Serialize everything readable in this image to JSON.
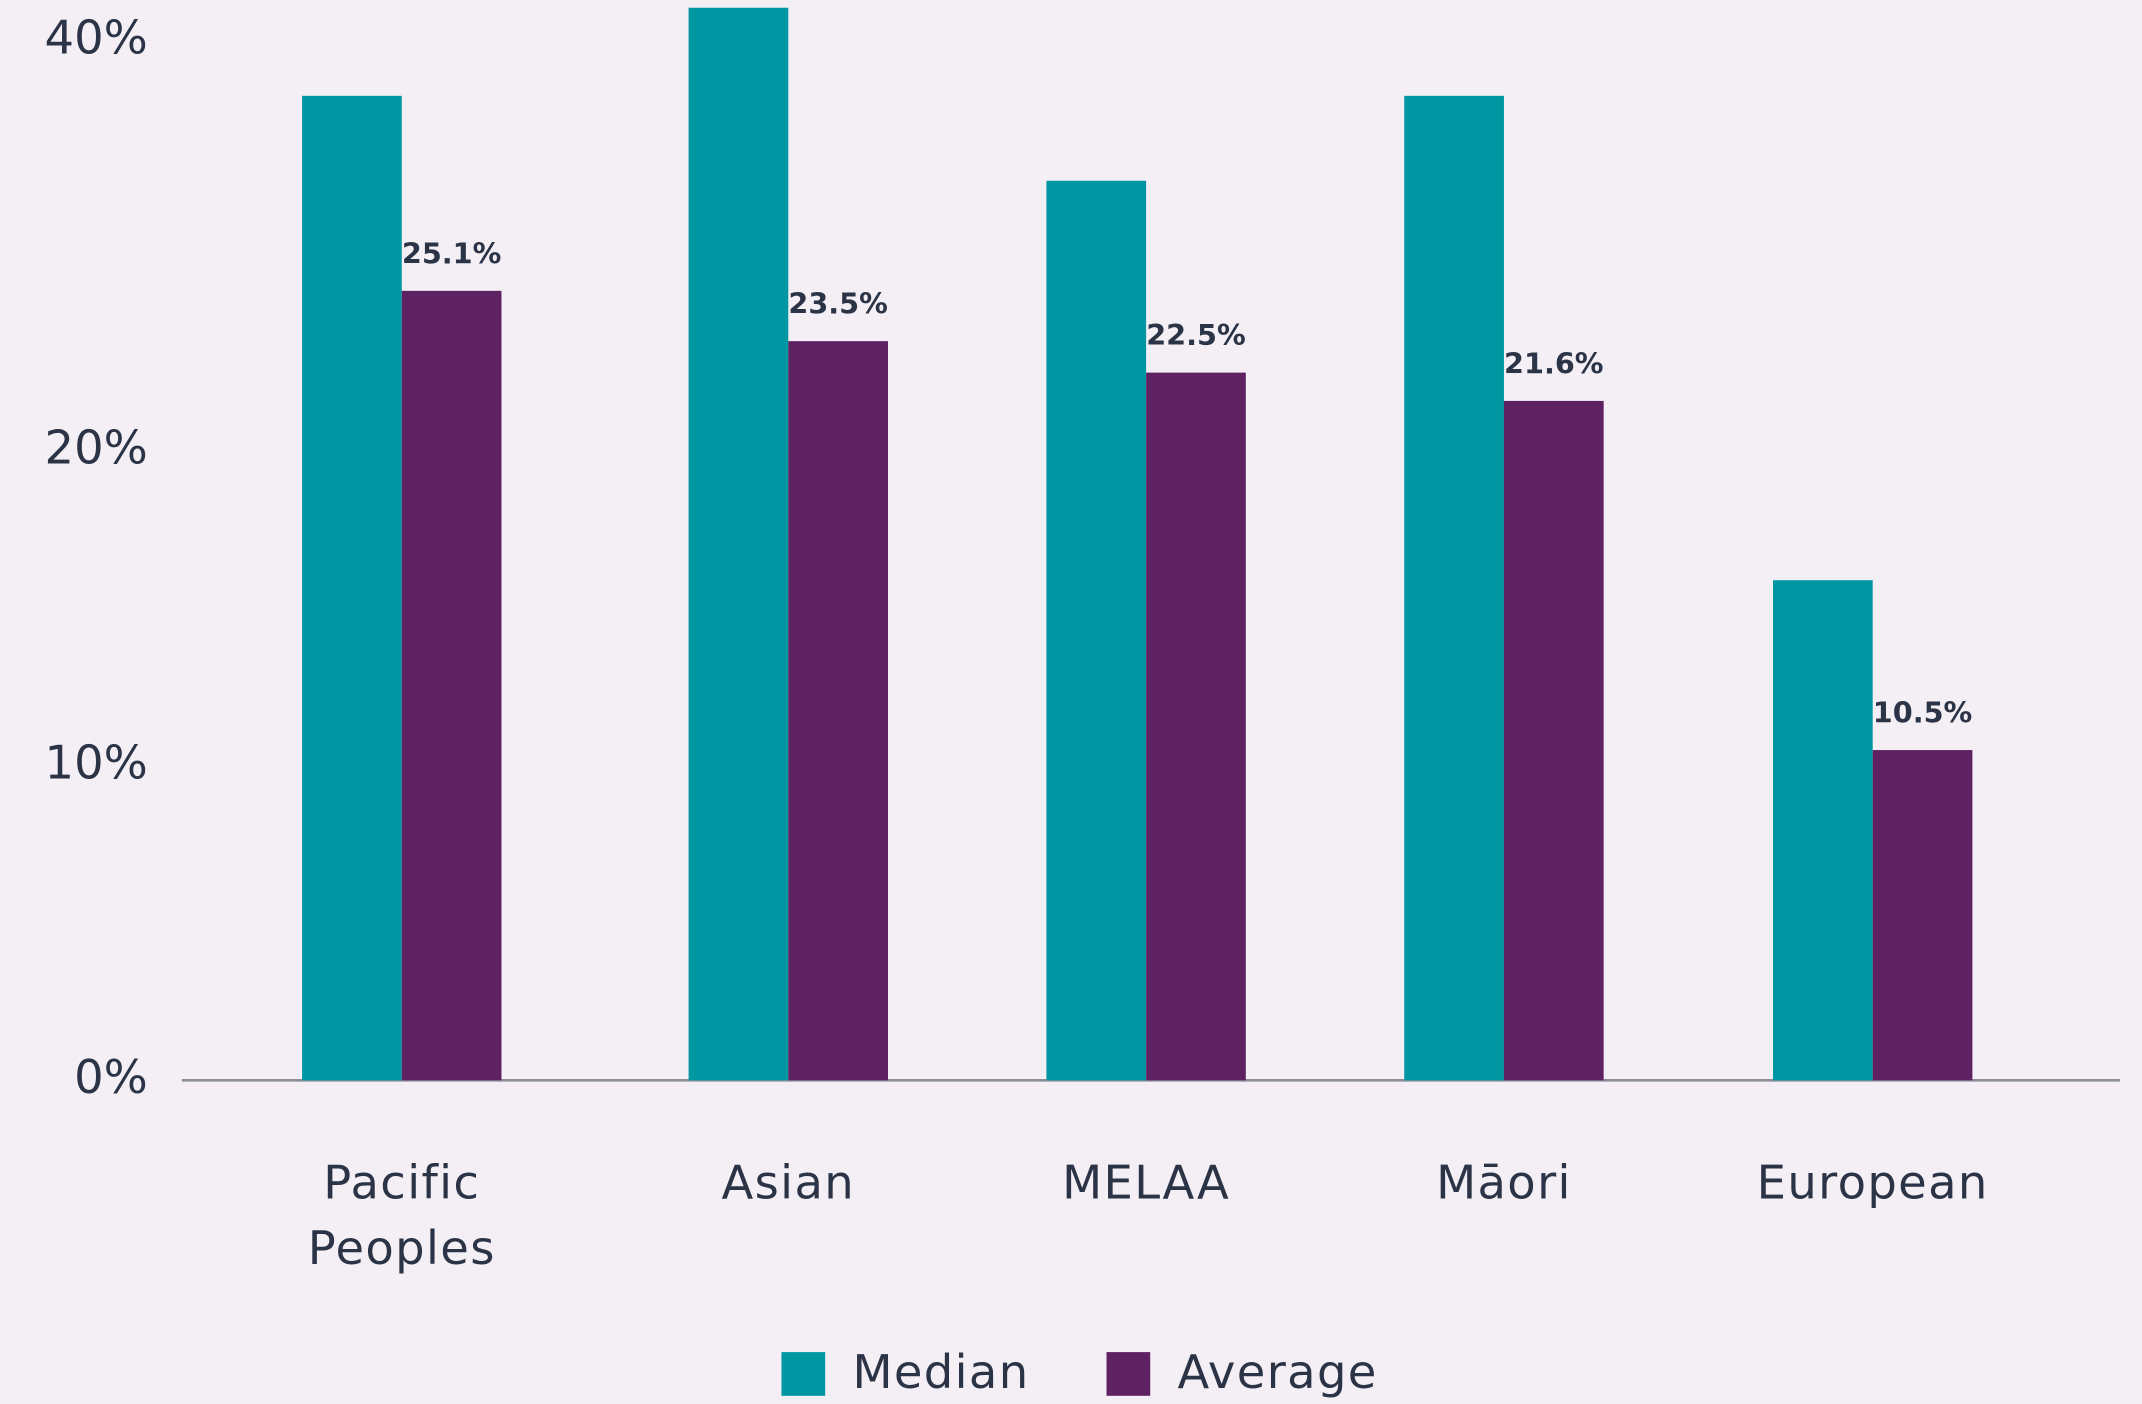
{
  "chart_data": {
    "type": "bar",
    "categories": [
      "Pacific Peoples",
      "Asian",
      "MELAA",
      "Māori",
      "European"
    ],
    "series": [
      {
        "name": "Median",
        "color": "#0097a3",
        "values": [
          31.3,
          34.1,
          28.6,
          31.3,
          15.9
        ]
      },
      {
        "name": "Average",
        "color": "#5e2162",
        "values": [
          25.1,
          23.5,
          22.5,
          21.6,
          10.5
        ],
        "value_labels": [
          "25.1%",
          "23.5%",
          "22.5%",
          "21.6%",
          "10.5%"
        ]
      }
    ],
    "ylim": [
      0,
      40
    ],
    "yticks": [
      {
        "value": 0,
        "label": "0%"
      },
      {
        "value": 10,
        "label": "10%"
      },
      {
        "value": 20,
        "label": "20%"
      },
      {
        "value": 40,
        "label": "40%"
      }
    ],
    "legend": "bottom"
  }
}
